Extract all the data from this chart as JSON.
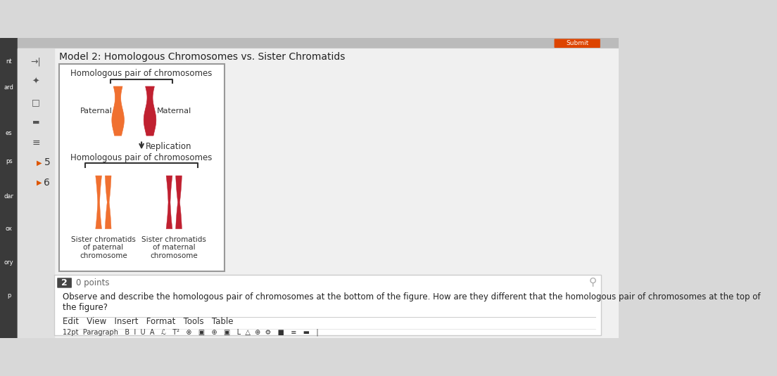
{
  "title": "Model 2: Homologous Chromosomes vs. Sister Chromatids",
  "bg_color": "#d8d8d8",
  "content_bg": "#f0f0f0",
  "icon_panel_bg": "#e0e0e0",
  "box_bg": "#ffffff",
  "top_label": "Homologous pair of chromosomes",
  "bottom_label": "Homologous pair of chromosomes",
  "paternal_label": "Paternal",
  "maternal_label": "Maternal",
  "replication_label": "Replication",
  "sister_paternal": "Sister chromatids\nof paternal\nchromosome",
  "sister_maternal": "Sister chromatids\nof maternal\nchromosome",
  "paternal_color": "#F07030",
  "maternal_color": "#C02030",
  "question_num": "2",
  "points": "0 points",
  "question_text": "Observe and describe the homologous pair of chromosomes at the bottom of the figure. How are they different that the homologous pair of chromosomes at the top of\nthe figure?",
  "toolbar_text": "Edit   View   Insert   Format   Tools   Table",
  "dark_sidebar_color": "#3a3a3a",
  "label_color": "#333333"
}
